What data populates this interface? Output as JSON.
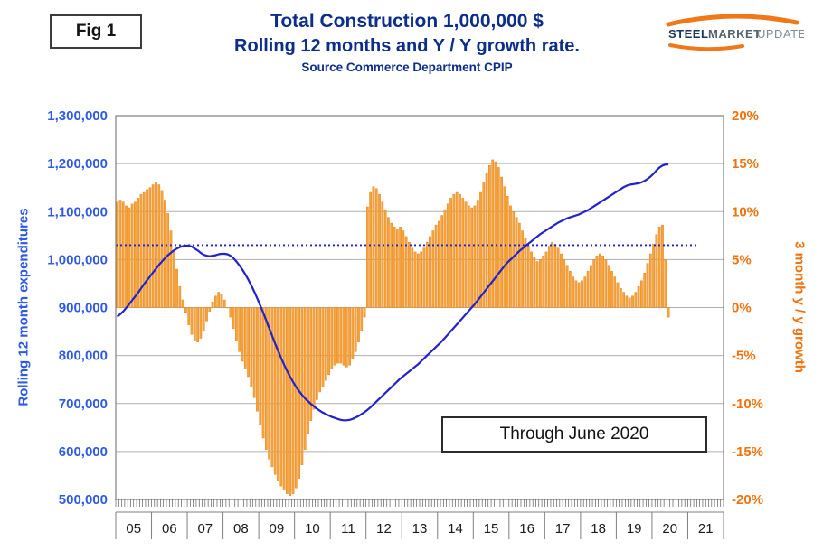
{
  "header": {
    "fig_label": "Fig 1",
    "logo": {
      "word1": "STEEL",
      "word2": "MARKET",
      "word3": "UPDATE"
    }
  },
  "chart_data": {
    "type": "combo-bar-line",
    "title": "Total Construction 1,000,000 $",
    "subtitle": "Rolling 12 months and Y / Y growth rate.",
    "source": "Source Commerce Department CPIP",
    "annotation": "Through June 2020",
    "left_axis": {
      "label": "Rolling 12 month expenditures",
      "min": 500000,
      "max": 1300000,
      "tick_step": 100000,
      "tick_labels": [
        "500,000",
        "600,000",
        "700,000",
        "800,000",
        "900,000",
        "1,000,000",
        "1,100,000",
        "1,200,000",
        "1,300,000"
      ]
    },
    "right_axis": {
      "label": "3 month y / y growth",
      "min": -20,
      "max": 20,
      "tick_step": 5,
      "tick_labels": [
        "-20%",
        "-15%",
        "-10%",
        "-5%",
        "0%",
        "5%",
        "10%",
        "15%",
        "20%"
      ]
    },
    "x_axis": {
      "year_labels": [
        "05",
        "06",
        "07",
        "08",
        "09",
        "10",
        "11",
        "12",
        "13",
        "14",
        "15",
        "16",
        "17",
        "18",
        "19",
        "20",
        "21"
      ],
      "minor_tick": "monthly",
      "data_start": "2005-01",
      "data_end": "2020-06"
    },
    "reference_line": {
      "value_pct": 6.5,
      "style": "dotted"
    },
    "series": [
      {
        "name": "3 month y / y growth",
        "type": "bar",
        "axis": "right",
        "unit": "%",
        "values": [
          11,
          11.2,
          11,
          10.6,
          10.4,
          10.8,
          11,
          11.4,
          11.8,
          12,
          12.3,
          12.5,
          12.8,
          13,
          12.8,
          12.2,
          11.2,
          9.8,
          8,
          6,
          4,
          2.2,
          0.8,
          -0.5,
          -1.8,
          -2.8,
          -3.4,
          -3.6,
          -3.2,
          -2.4,
          -1.4,
          -0.4,
          0.6,
          1.2,
          1.6,
          1.4,
          0.8,
          0,
          -1,
          -2.2,
          -3.4,
          -4.6,
          -5.6,
          -6.4,
          -7.2,
          -8.2,
          -9.4,
          -10.8,
          -12.2,
          -13.6,
          -14.8,
          -15.8,
          -16.6,
          -17.4,
          -18,
          -18.6,
          -19,
          -19.4,
          -19.6,
          -19.4,
          -18.8,
          -17.8,
          -16.4,
          -14.8,
          -13.2,
          -11.8,
          -10.6,
          -9.6,
          -8.8,
          -8.2,
          -7.6,
          -7,
          -6.4,
          -6,
          -5.8,
          -5.8,
          -6,
          -6.2,
          -6,
          -5.4,
          -4.6,
          -3.6,
          -2.4,
          -1,
          10.5,
          12,
          12.6,
          12.4,
          11.8,
          11,
          10.2,
          9.4,
          8.8,
          8.4,
          8.2,
          8.4,
          8,
          7.4,
          6.8,
          6.2,
          5.8,
          5.6,
          5.8,
          6.2,
          6.8,
          7.4,
          8,
          8.6,
          9,
          9.6,
          10.2,
          10.8,
          11.4,
          11.8,
          12,
          11.8,
          11.4,
          11,
          10.6,
          10.4,
          10.6,
          11.2,
          12,
          13,
          14,
          14.8,
          15.4,
          15.2,
          14.6,
          13.6,
          12.6,
          11.6,
          10.6,
          10,
          9.4,
          8.8,
          8,
          7.2,
          6.4,
          5.8,
          5.2,
          4.8,
          5,
          5.4,
          5.8,
          6.4,
          6.8,
          6.6,
          6.2,
          5.6,
          5,
          4.4,
          3.8,
          3.2,
          2.8,
          2.6,
          2.8,
          3.2,
          3.8,
          4.4,
          5,
          5.4,
          5.6,
          5.4,
          5,
          4.4,
          3.8,
          3.2,
          2.6,
          2,
          1.6,
          1.2,
          1,
          1.2,
          1.6,
          2.2,
          2.8,
          3.6,
          4.6,
          5.6,
          6.6,
          7.6,
          8.4,
          8.6,
          5,
          -1
        ]
      },
      {
        "name": "Rolling 12 month expenditures",
        "type": "line",
        "axis": "left",
        "unit": "thousand $",
        "scale": 1000,
        "values": [
          881,
          886,
          892,
          899,
          907,
          915,
          923,
          931,
          940,
          949,
          957,
          965,
          973,
          981,
          989,
          996,
          1003,
          1009,
          1014,
          1019,
          1023,
          1026,
          1028,
          1029,
          1029,
          1027,
          1023,
          1019,
          1014,
          1010,
          1008,
          1007,
          1008,
          1009,
          1011,
          1012,
          1012,
          1011,
          1008,
          1003,
          996,
          988,
          979,
          969,
          958,
          946,
          933,
          919,
          904,
          889,
          873,
          857,
          841,
          825,
          810,
          795,
          781,
          768,
          756,
          745,
          735,
          726,
          718,
          711,
          705,
          699,
          694,
          689,
          685,
          681,
          678,
          675,
          672,
          670,
          668,
          666,
          665,
          665,
          666,
          668,
          671,
          674,
          678,
          682,
          687,
          692,
          698,
          704,
          710,
          716,
          722,
          728,
          734,
          740,
          746,
          752,
          757,
          762,
          767,
          772,
          777,
          782,
          788,
          794,
          800,
          806,
          812,
          818,
          824,
          830,
          837,
          844,
          851,
          858,
          865,
          872,
          879,
          886,
          893,
          900,
          907,
          915,
          923,
          931,
          939,
          947,
          955,
          963,
          971,
          979,
          987,
          994,
          1000,
          1006,
          1012,
          1018,
          1023,
          1028,
          1033,
          1038,
          1043,
          1048,
          1053,
          1057,
          1061,
          1065,
          1069,
          1073,
          1077,
          1080,
          1083,
          1086,
          1088,
          1090,
          1092,
          1094,
          1097,
          1100,
          1103,
          1107,
          1111,
          1115,
          1119,
          1123,
          1127,
          1131,
          1135,
          1139,
          1143,
          1147,
          1151,
          1154,
          1156,
          1157,
          1158,
          1159,
          1161,
          1164,
          1168,
          1173,
          1179,
          1186,
          1192,
          1196,
          1198,
          1198
        ]
      }
    ],
    "colors": {
      "title": "#0B2D8B",
      "line": "#2222CC",
      "bar_fill": "#F8A33A",
      "bar_edge": "#DF7E16",
      "left_labels": "#2E59E8",
      "right_labels": "#F2720D",
      "grid": "#AFAFAF",
      "border": "#7F7F7F",
      "logo_orange": "#F07818",
      "logo_navy": "#16365C",
      "logo_gray": "#7E8C99"
    }
  }
}
